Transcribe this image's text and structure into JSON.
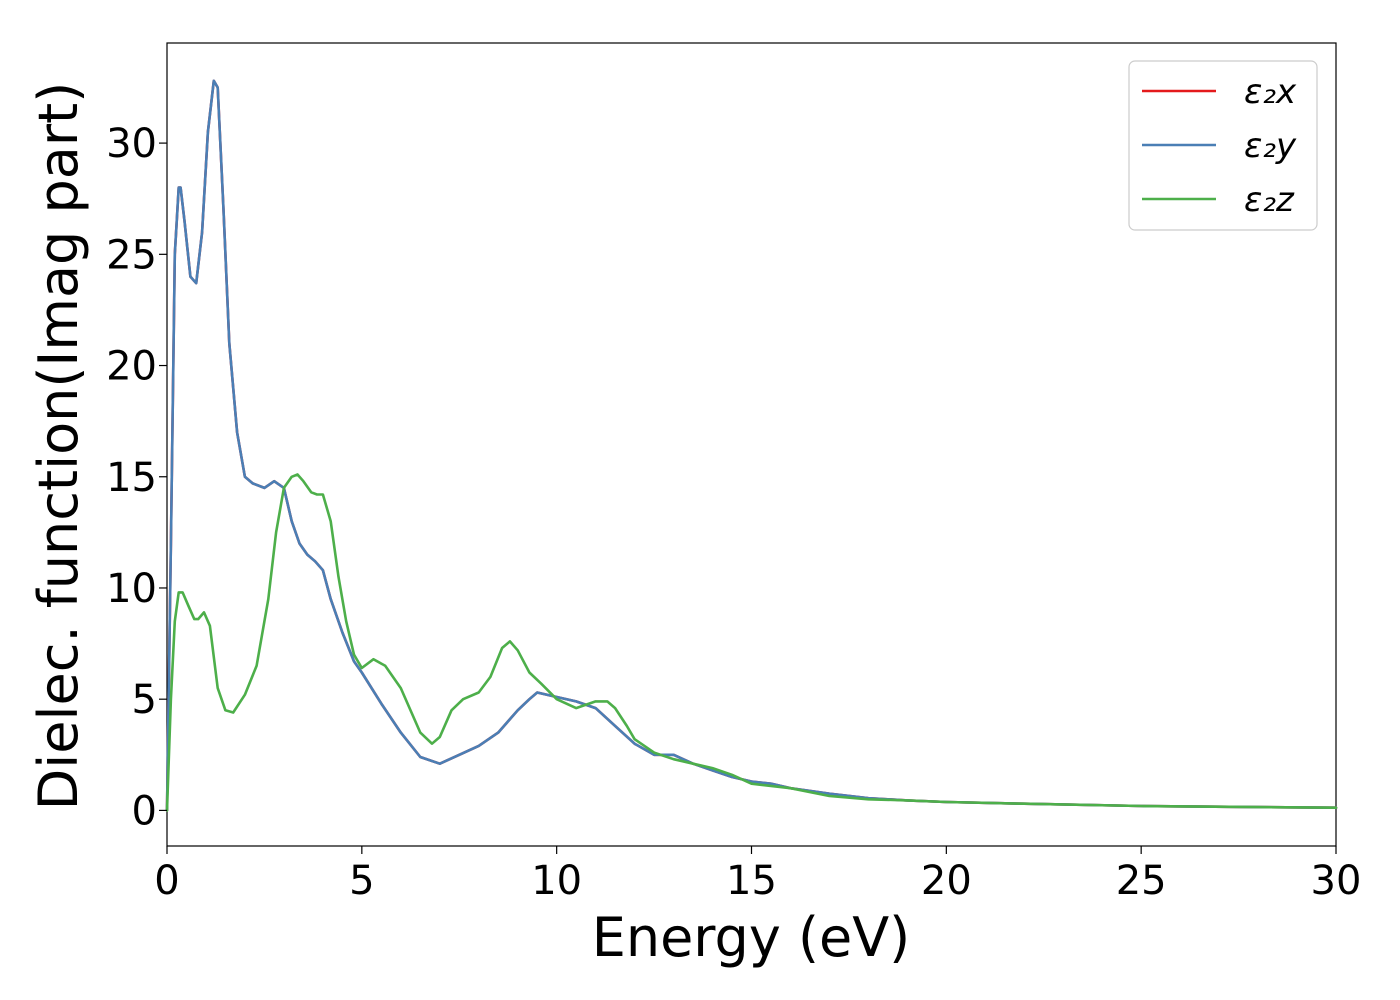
{
  "chart_data": {
    "type": "line",
    "xlabel": "Energy (eV)",
    "ylabel": "Dielec. function(Imag part)",
    "xlim": [
      0,
      30
    ],
    "ylim": [
      -1.6,
      34.5
    ],
    "xticks": [
      0,
      5,
      10,
      15,
      20,
      25,
      30
    ],
    "yticks": [
      0,
      5,
      10,
      15,
      20,
      25,
      30
    ],
    "grid": false,
    "legend_position": "top-right",
    "series": [
      {
        "name": "ε₂x",
        "color": "#e41a1c",
        "x": [
          0,
          0.1,
          0.2,
          0.3,
          0.35,
          0.45,
          0.6,
          0.75,
          0.9,
          1.05,
          1.2,
          1.3,
          1.45,
          1.6,
          1.8,
          2.0,
          2.2,
          2.5,
          2.75,
          3.0,
          3.2,
          3.4,
          3.6,
          3.8,
          4.0,
          4.2,
          4.5,
          4.8,
          5.0,
          5.5,
          6.0,
          6.5,
          7.0,
          7.5,
          8.0,
          8.5,
          9.0,
          9.3,
          9.5,
          10.0,
          10.5,
          11.0,
          11.5,
          12.0,
          12.5,
          13.0,
          13.5,
          14.0,
          14.5,
          15.0,
          15.5,
          16.0,
          17.0,
          18.0,
          19.0,
          20.0,
          22.0,
          25.0,
          28.0,
          30.0
        ],
        "y": [
          0,
          12,
          25,
          28,
          28,
          26.5,
          24,
          23.7,
          26,
          30.5,
          32.8,
          32.5,
          27,
          21,
          17,
          15,
          14.7,
          14.5,
          14.8,
          14.5,
          13,
          12,
          11.5,
          11.2,
          10.8,
          9.5,
          8,
          6.7,
          6.2,
          4.8,
          3.5,
          2.4,
          2.1,
          2.5,
          2.9,
          3.5,
          4.5,
          5.0,
          5.3,
          5.1,
          4.9,
          4.6,
          3.8,
          3.0,
          2.5,
          2.5,
          2.1,
          1.8,
          1.5,
          1.3,
          1.2,
          1.0,
          0.75,
          0.55,
          0.45,
          0.38,
          0.3,
          0.2,
          0.15,
          0.12
        ]
      },
      {
        "name": "ε₂y",
        "color": "#4a7fb5",
        "x": [
          0,
          0.1,
          0.2,
          0.3,
          0.35,
          0.45,
          0.6,
          0.75,
          0.9,
          1.05,
          1.2,
          1.3,
          1.45,
          1.6,
          1.8,
          2.0,
          2.2,
          2.5,
          2.75,
          3.0,
          3.2,
          3.4,
          3.6,
          3.8,
          4.0,
          4.2,
          4.5,
          4.8,
          5.0,
          5.5,
          6.0,
          6.5,
          7.0,
          7.5,
          8.0,
          8.5,
          9.0,
          9.3,
          9.5,
          10.0,
          10.5,
          11.0,
          11.5,
          12.0,
          12.5,
          13.0,
          13.5,
          14.0,
          14.5,
          15.0,
          15.5,
          16.0,
          17.0,
          18.0,
          19.0,
          20.0,
          22.0,
          25.0,
          28.0,
          30.0
        ],
        "y": [
          0,
          12,
          25,
          28,
          28,
          26.5,
          24,
          23.7,
          26,
          30.5,
          32.8,
          32.5,
          27,
          21,
          17,
          15,
          14.7,
          14.5,
          14.8,
          14.5,
          13,
          12,
          11.5,
          11.2,
          10.8,
          9.5,
          8,
          6.7,
          6.2,
          4.8,
          3.5,
          2.4,
          2.1,
          2.5,
          2.9,
          3.5,
          4.5,
          5.0,
          5.3,
          5.1,
          4.9,
          4.6,
          3.8,
          3.0,
          2.5,
          2.5,
          2.1,
          1.8,
          1.5,
          1.3,
          1.2,
          1.0,
          0.75,
          0.55,
          0.45,
          0.38,
          0.3,
          0.2,
          0.15,
          0.12
        ]
      },
      {
        "name": "ε₂z",
        "color": "#4daf4a",
        "x": [
          0,
          0.1,
          0.2,
          0.3,
          0.4,
          0.55,
          0.7,
          0.8,
          0.95,
          1.1,
          1.3,
          1.5,
          1.7,
          2.0,
          2.3,
          2.6,
          2.8,
          3.0,
          3.2,
          3.35,
          3.5,
          3.7,
          3.85,
          4.0,
          4.2,
          4.4,
          4.6,
          4.8,
          5.0,
          5.3,
          5.6,
          6.0,
          6.5,
          6.8,
          7.0,
          7.3,
          7.6,
          8.0,
          8.3,
          8.6,
          8.8,
          9.0,
          9.3,
          9.6,
          10.0,
          10.5,
          11.0,
          11.3,
          11.5,
          11.8,
          12.0,
          12.5,
          13.0,
          13.5,
          14.0,
          14.5,
          15.0,
          16.0,
          17.0,
          18.0,
          19.0,
          20.0,
          22.0,
          25.0,
          28.0,
          30.0
        ],
        "y": [
          0,
          5,
          8.5,
          9.8,
          9.8,
          9.2,
          8.6,
          8.6,
          8.9,
          8.3,
          5.5,
          4.5,
          4.4,
          5.2,
          6.5,
          9.5,
          12.5,
          14.5,
          15.0,
          15.1,
          14.8,
          14.3,
          14.2,
          14.2,
          13.0,
          10.5,
          8.5,
          7.0,
          6.4,
          6.8,
          6.5,
          5.5,
          3.5,
          3.0,
          3.3,
          4.5,
          5.0,
          5.3,
          6.0,
          7.3,
          7.6,
          7.2,
          6.2,
          5.7,
          5.0,
          4.6,
          4.9,
          4.9,
          4.6,
          3.8,
          3.2,
          2.6,
          2.3,
          2.1,
          1.9,
          1.6,
          1.2,
          1.0,
          0.65,
          0.5,
          0.45,
          0.38,
          0.3,
          0.2,
          0.15,
          0.12
        ]
      }
    ]
  }
}
